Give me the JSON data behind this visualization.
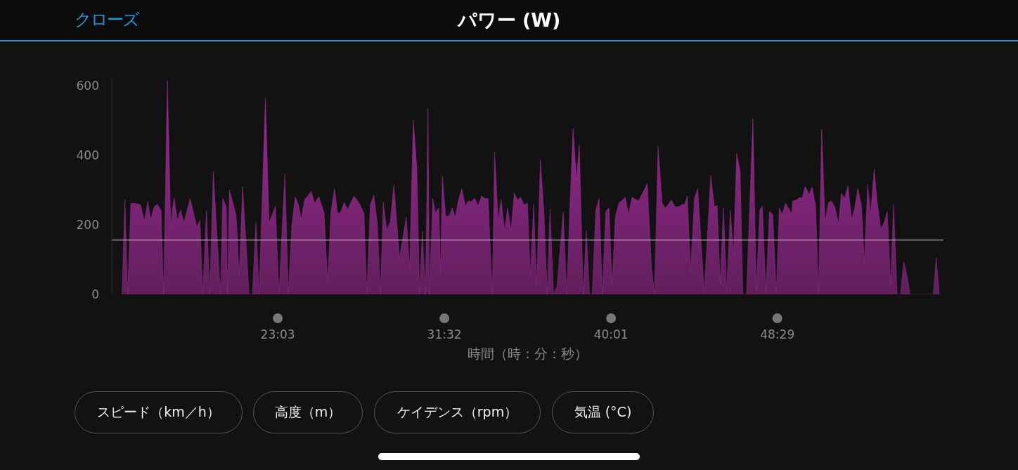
{
  "chart_data": {
    "type": "area",
    "title": "パワー (W)",
    "xlabel": "時間（時：分：秒）",
    "annotations": [
      "クローズ",
      "スピード（km／h）",
      "高度（m）",
      "ケイデンス（rpm）",
      "気温 (°C)"
    ],
    "xlim": [
      14.6,
      56.94
    ],
    "ylim": [
      0,
      620
    ],
    "xticks": [
      {
        "value": 23.05,
        "label": "23:03"
      },
      {
        "value": 31.533,
        "label": "31:32"
      },
      {
        "value": 40.017,
        "label": "40:01"
      },
      {
        "value": 48.483,
        "label": "48:29"
      }
    ],
    "yticks": [
      0,
      200,
      400,
      600
    ],
    "ref_lines": [
      {
        "axis": "y",
        "value": 156,
        "color": "#d0d0d0"
      }
    ],
    "grid": false,
    "legend": false,
    "series": [
      {
        "color": "#a02a98",
        "x": [
          15.12,
          15.27,
          15.41,
          15.57,
          15.83,
          16.05,
          16.27,
          16.43,
          16.58,
          16.76,
          16.93,
          17.11,
          17.24,
          17.43,
          17.6,
          17.77,
          17.94,
          18.1,
          18.27,
          18.59,
          18.93,
          19.09,
          19.23,
          19.42,
          19.59,
          19.77,
          20.13,
          20.25,
          20.43,
          20.49,
          20.59,
          20.93,
          21.09,
          21.26,
          21.59,
          21.76,
          21.94,
          22.1,
          22.42,
          22.61,
          22.93,
          23.11,
          23.41,
          23.59,
          23.77,
          23.94,
          24.1,
          24.24,
          24.42,
          24.76,
          24.92,
          25.14,
          25.41,
          25.59,
          25.76,
          25.94,
          26.09,
          26.24,
          26.43,
          26.61,
          26.93,
          27.23,
          27.44,
          27.58,
          27.76,
          27.94,
          28.12,
          28.28,
          28.42,
          28.6,
          28.78,
          28.96,
          29.25,
          29.59,
          29.76,
          29.95,
          30.13,
          30.27,
          30.41,
          30.57,
          30.7,
          30.77,
          30.94,
          31.08,
          31.25,
          31.34,
          31.43,
          31.6,
          31.76,
          31.94,
          32.08,
          32.24,
          32.42,
          32.6,
          32.77,
          32.89,
          33.07,
          33.25,
          33.43,
          33.61,
          33.76,
          33.97,
          34.09,
          34.27,
          34.42,
          34.6,
          34.75,
          34.92,
          35.09,
          35.26,
          35.41,
          35.59,
          35.76,
          35.91,
          36.08,
          36.23,
          36.42,
          36.59,
          36.77,
          36.91,
          37.09,
          37.27,
          37.58,
          37.76,
          37.92,
          38.08,
          38.26,
          38.4,
          38.6,
          38.76,
          38.92,
          39.06,
          39.24,
          39.41,
          39.57,
          39.75,
          39.91,
          40.07,
          40.24,
          40.41,
          40.74,
          40.91,
          41.08,
          41.42,
          41.86,
          42.08,
          42.23,
          42.41,
          42.62,
          42.77,
          42.91,
          43.09,
          43.27,
          43.45,
          43.63,
          43.75,
          43.9,
          44.07,
          44.26,
          44.43,
          44.76,
          45.09,
          45.28,
          45.42,
          45.57,
          45.74,
          45.9,
          46.09,
          46.25,
          46.41,
          46.59,
          46.73,
          46.91,
          47.24,
          47.41,
          47.59,
          47.72,
          47.9,
          48.08,
          48.25,
          48.43,
          48.58,
          48.72,
          48.9,
          49.22,
          49.26,
          49.45,
          49.62,
          49.74,
          49.9,
          50.1,
          50.25,
          50.43,
          50.58,
          50.74,
          50.91,
          51.09,
          51.24,
          51.41,
          51.6,
          51.74,
          51.9,
          52.08,
          52.26,
          52.4,
          52.58,
          52.76,
          52.91,
          53.08,
          53.23,
          53.41,
          53.56,
          53.75,
          53.91,
          54.08,
          54.25,
          54.4,
          54.58,
          54.75,
          54.92,
          55.08,
          55.24,
          56.42,
          56.57,
          56.73
        ],
        "values": [
          0,
          273,
          0,
          262,
          261,
          258,
          212,
          266,
          215,
          252,
          259,
          241,
          0,
          616,
          199,
          279,
          212,
          242,
          207,
          275,
          194,
          212,
          0,
          242,
          0,
          353,
          0,
          276,
          252,
          0,
          301,
          227,
          54,
          310,
          0,
          0,
          209,
          0,
          565,
          205,
          254,
          0,
          347,
          0,
          202,
          281,
          259,
          215,
          273,
          296,
          261,
          281,
          234,
          34,
          238,
          304,
          234,
          235,
          264,
          244,
          283,
          259,
          232,
          0,
          258,
          285,
          202,
          0,
          264,
          185,
          209,
          316,
          104,
          222,
          74,
          501,
          363,
          0,
          182,
          0,
          535,
          0,
          276,
          234,
          249,
          61,
          340,
          224,
          225,
          249,
          221,
          269,
          304,
          254,
          269,
          266,
          276,
          254,
          283,
          275,
          276,
          0,
          409,
          212,
          273,
          182,
          249,
          182,
          291,
          271,
          279,
          257,
          262,
          54,
          259,
          27,
          387,
          246,
          0,
          246,
          0,
          24,
          237,
          0,
          249,
          478,
          330,
          429,
          0,
          183,
          0,
          0,
          242,
          276,
          0,
          239,
          249,
          27,
          225,
          262,
          279,
          230,
          279,
          269,
          318,
          74,
          0,
          424,
          262,
          249,
          257,
          271,
          252,
          252,
          258,
          258,
          283,
          64,
          276,
          304,
          3,
          342,
          252,
          256,
          30,
          249,
          7,
          242,
          114,
          405,
          353,
          0,
          0,
          505,
          10,
          242,
          254,
          3,
          239,
          229,
          3,
          249,
          229,
          262,
          232,
          268,
          271,
          279,
          276,
          310,
          288,
          308,
          256,
          3,
          474,
          210,
          264,
          268,
          252,
          202,
          291,
          276,
          312,
          217,
          242,
          305,
          256,
          91,
          316,
          229,
          360,
          269,
          187,
          205,
          239,
          30,
          258,
          0,
          0,
          94,
          54,
          0,
          0,
          106,
          0
        ]
      }
    ]
  }
}
